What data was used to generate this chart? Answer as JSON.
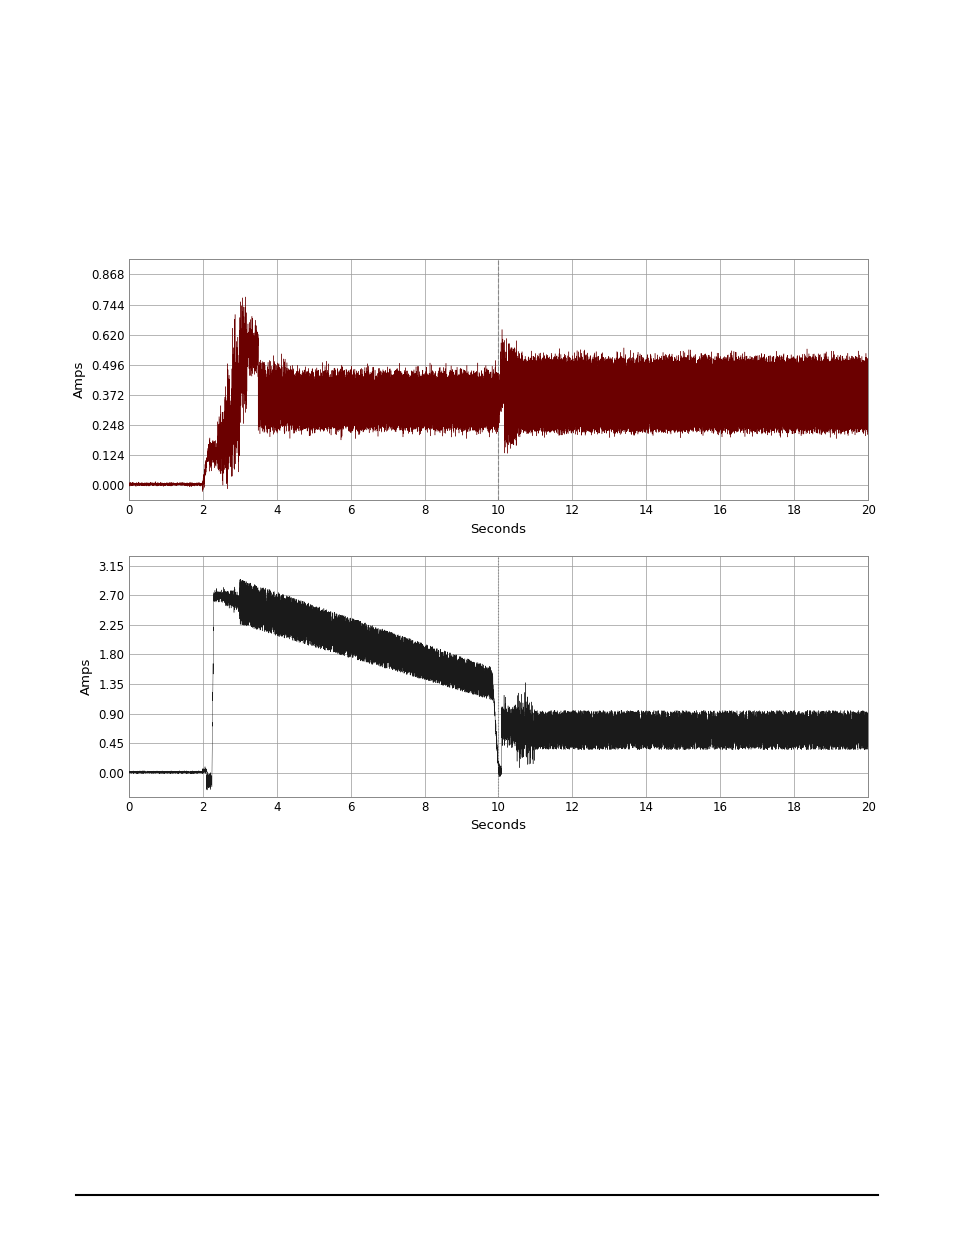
{
  "fig1": {
    "xlabel": "Seconds",
    "ylabel": "Amps",
    "xlim": [
      0,
      20
    ],
    "ylim": [
      -0.062,
      0.93
    ],
    "yticks": [
      0.0,
      0.124,
      0.248,
      0.372,
      0.496,
      0.62,
      0.744,
      0.868
    ],
    "xticks": [
      0,
      2,
      4,
      6,
      8,
      10,
      12,
      14,
      16,
      18,
      20
    ],
    "color": "#6B0000",
    "dashed_vline_x": 10.0
  },
  "fig2": {
    "xlabel": "Seconds",
    "ylabel": "Amps",
    "xlim": [
      0,
      20
    ],
    "ylim": [
      -0.36,
      3.3
    ],
    "yticks": [
      0.0,
      0.45,
      0.9,
      1.35,
      1.8,
      2.25,
      2.7,
      3.15
    ],
    "xticks": [
      0,
      2,
      4,
      6,
      8,
      10,
      12,
      14,
      16,
      18,
      20
    ],
    "color": "#1a1a1a",
    "dashed_vline_x": 10.0
  },
  "background_color": "#ffffff",
  "grid_color": "#999999",
  "bottom_line_y": 0.032
}
